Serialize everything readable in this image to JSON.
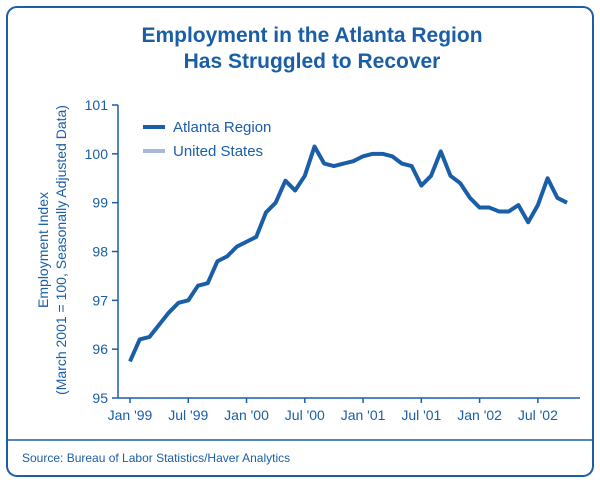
{
  "chart_data": {
    "type": "line",
    "title": [
      "Employment in the Atlanta Region",
      "Has Struggled to Recover"
    ],
    "ylabel": [
      "Employment Index",
      "(March 2001 = 100, Seasonally Adjusted Data)"
    ],
    "source": "Source: Bureau of Labor Statistics/Haver Analytics",
    "categories": [
      "Jan '99",
      null,
      null,
      null,
      null,
      null,
      "Jul '99",
      null,
      null,
      null,
      null,
      null,
      "Jan '00",
      null,
      null,
      null,
      null,
      null,
      "Jul '00",
      null,
      null,
      null,
      null,
      null,
      "Jan '01",
      null,
      null,
      null,
      null,
      null,
      "Jul '01",
      null,
      null,
      null,
      null,
      null,
      "Jan '02",
      null,
      null,
      null,
      null,
      null,
      "Jul '02",
      null,
      null,
      null
    ],
    "series": [
      {
        "name": "Atlanta Region",
        "color": "#1a5ea8",
        "values": [
          95.75,
          96.2,
          96.25,
          96.5,
          96.75,
          96.95,
          97.0,
          97.3,
          97.35,
          97.8,
          97.9,
          98.1,
          98.2,
          98.3,
          98.8,
          99.0,
          99.45,
          99.25,
          99.55,
          100.15,
          99.8,
          99.75,
          99.8,
          99.85,
          99.95,
          100.0,
          100.0,
          99.95,
          99.8,
          99.75,
          99.35,
          99.55,
          100.05,
          99.55,
          99.4,
          99.1,
          98.9,
          98.9,
          98.82,
          98.82,
          98.95,
          98.6,
          98.95,
          99.5,
          99.1,
          99.0
        ]
      },
      {
        "name": "United States",
        "color": "#a9b8d8",
        "values": [
          null,
          null,
          null,
          null,
          null,
          null,
          null,
          null,
          null,
          null,
          null,
          null,
          null,
          null,
          null,
          null,
          null,
          null,
          null,
          null,
          null,
          null,
          null,
          null,
          null,
          null,
          null,
          null,
          null,
          null,
          null,
          null,
          null,
          null,
          null,
          null,
          null,
          null,
          null,
          null,
          null,
          null,
          null,
          null,
          null,
          null
        ]
      }
    ],
    "ylim": [
      95,
      101
    ],
    "yticks": [
      95,
      96,
      97,
      98,
      99,
      100,
      101
    ],
    "grid": false,
    "legend": "upper left"
  }
}
